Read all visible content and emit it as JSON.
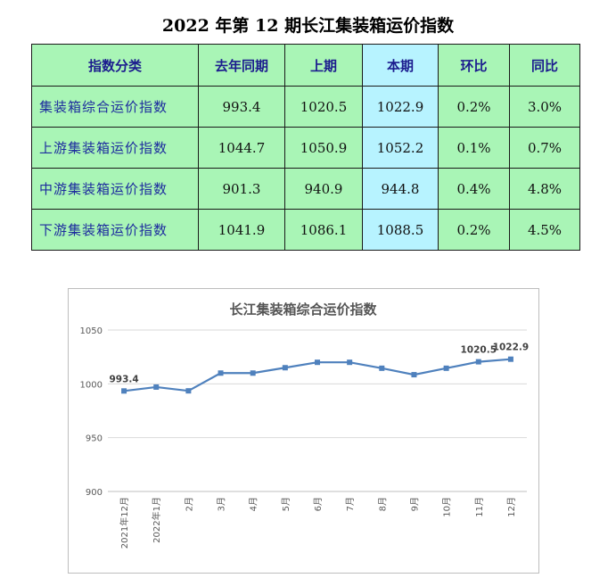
{
  "title": "2022 年第 12 期长江集装箱运价指数",
  "table": {
    "headers": [
      "指数分类",
      "去年同期",
      "上期",
      "本期",
      "环比",
      "同比"
    ],
    "rows": [
      {
        "name": "集装箱综合运价指数",
        "last_year": "993.4",
        "prev": "1020.5",
        "curr": "1022.9",
        "mom": "0.2%",
        "yoy": "3.0%"
      },
      {
        "name": "上游集装箱运价指数",
        "last_year": "1044.7",
        "prev": "1050.9",
        "curr": "1052.2",
        "mom": "0.1%",
        "yoy": "0.7%"
      },
      {
        "name": "中游集装箱运价指数",
        "last_year": "901.3",
        "prev": "940.9",
        "curr": "944.8",
        "mom": "0.4%",
        "yoy": "4.8%"
      },
      {
        "name": "下游集装箱运价指数",
        "last_year": "1041.9",
        "prev": "1086.1",
        "curr": "1088.5",
        "mom": "0.2%",
        "yoy": "4.5%"
      }
    ],
    "colors": {
      "cell": "#a9f5b6",
      "highlight": "#b7f3ff",
      "header_text": "#1b1b8e",
      "name_text": "#1d2c9e"
    }
  },
  "chart_data": {
    "type": "line",
    "title": "长江集装箱综合运价指数",
    "categories": [
      "2021年12月",
      "2022年1月",
      "2月",
      "3月",
      "4月",
      "5月",
      "6月",
      "7月",
      "8月",
      "9月",
      "10月",
      "11月",
      "12月"
    ],
    "series": [
      {
        "values": [
          993.4,
          997,
          993.5,
          1010,
          1010,
          1015,
          1020,
          1020,
          1014.5,
          1008.5,
          1014.5,
          1020.5,
          1022.9
        ]
      }
    ],
    "data_labels": [
      {
        "index": 0,
        "text": "993.4"
      },
      {
        "index": 11,
        "text": "1020.5"
      },
      {
        "index": 12,
        "text": "1022.9"
      }
    ],
    "yticks": [
      "1050",
      "1000",
      "950",
      "900"
    ],
    "ylim": [
      900,
      1050
    ],
    "grid": true,
    "line_color": "#4f81bd"
  }
}
